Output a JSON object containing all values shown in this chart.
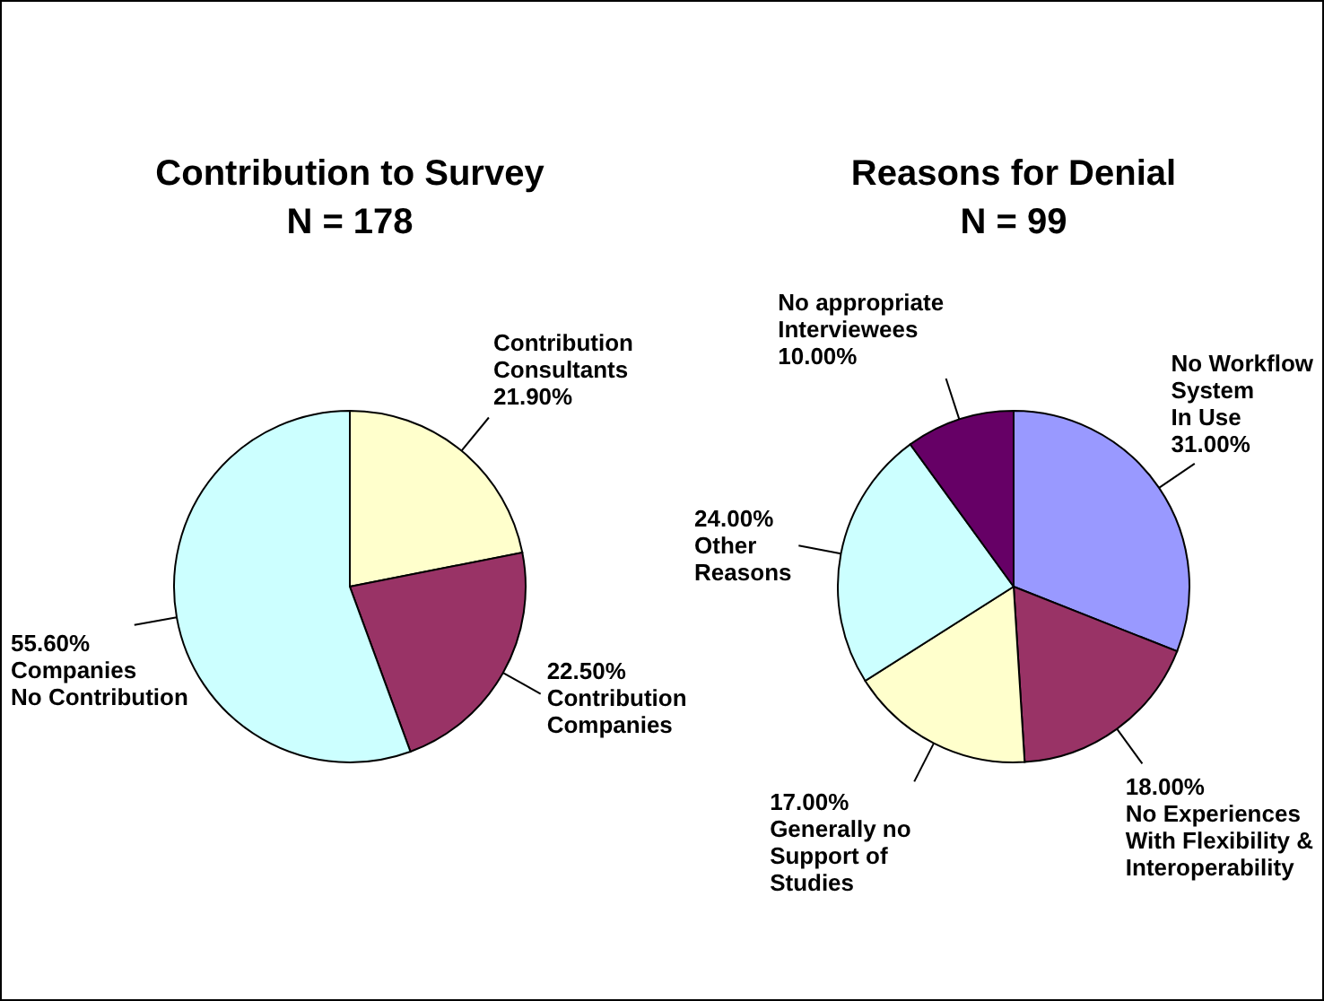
{
  "chart_data": [
    {
      "type": "pie",
      "title": "Contribution to Survey",
      "subtitle": "N = 178",
      "categories": [
        "Contribution\nConsultants",
        "Contribution\nCompanies",
        "Companies\nNo Contribution"
      ],
      "values": [
        21.9,
        22.5,
        55.6
      ],
      "colors": [
        "#ffffcc",
        "#993366",
        "#ccffff"
      ],
      "value_labels": [
        "21.90%",
        "22.50%",
        "55.60%"
      ]
    },
    {
      "type": "pie",
      "title": "Reasons for Denial",
      "subtitle": "N = 99",
      "categories": [
        "No Workflow\nSystem\nIn Use",
        "No Experiences\nWith Flexibility &\nInteroperability",
        "Generally no\nSupport of\nStudies",
        "Other\nReasons",
        "No appropriate\nInterviewees"
      ],
      "values": [
        31,
        18,
        17,
        24,
        10
      ],
      "colors": [
        "#9999ff",
        "#993366",
        "#ffffcc",
        "#ccffff",
        "#660066"
      ],
      "value_labels": [
        "31.00%",
        "18.00%",
        "17.00%",
        "24.00%",
        "10.00%"
      ]
    }
  ]
}
